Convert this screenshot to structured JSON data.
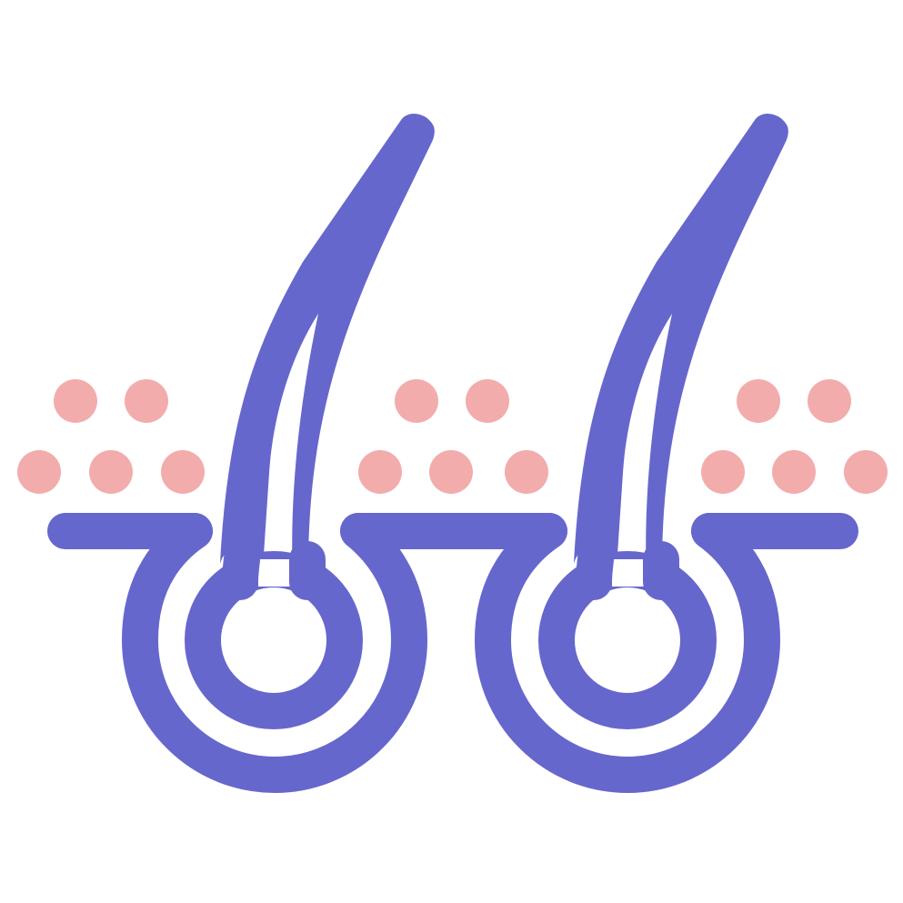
{
  "icon": {
    "name": "hair-follicle-icon",
    "colors": {
      "background": "#ffffff",
      "primary": "#6667cc",
      "accent": "#f2acac"
    }
  }
}
